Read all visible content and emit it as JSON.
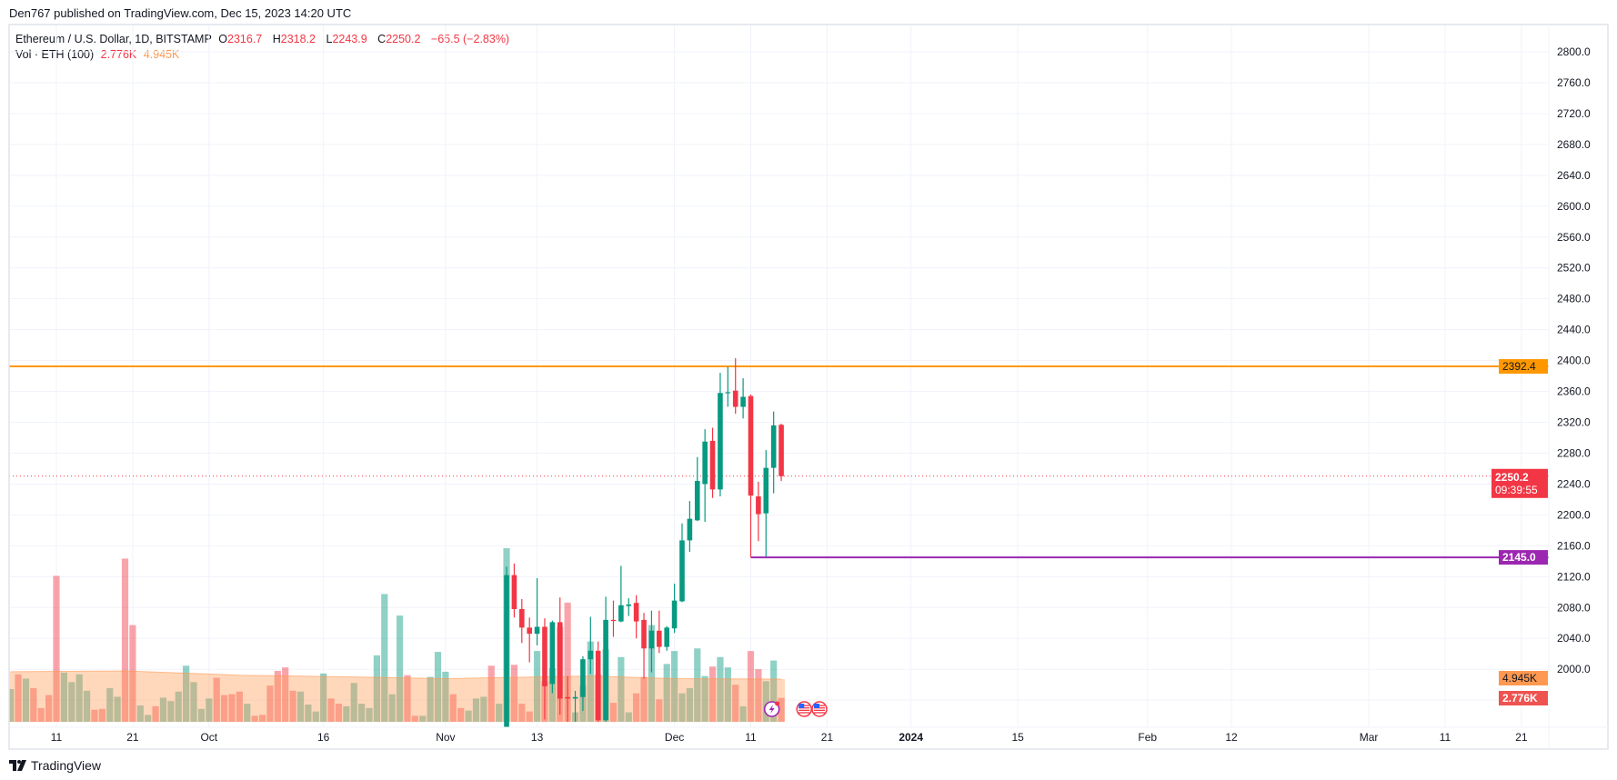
{
  "header": {
    "published": "Den767 published on TradingView.com, Dec 15, 2023 14:20 UTC"
  },
  "legend": {
    "symbol": "Ethereum / U.S. Dollar, 1D, BITSTAMP",
    "o_label": "O",
    "o": "2316.7",
    "h_label": "H",
    "h": "2318.2",
    "l_label": "L",
    "l": "2243.9",
    "c_label": "C",
    "c": "2250.2",
    "change": "−65.5 (−2.83%)",
    "vol_label": "Vol · ETH (100)",
    "vol_value": "2.776K",
    "vol_ma_value": "4.945K"
  },
  "footer": {
    "brand": "TradingView"
  },
  "colors": {
    "up": "#089981",
    "down": "#f23645",
    "resistance": "#ff9800",
    "support": "#9c27b0",
    "last_price": "#f23645",
    "vol_ma": "#ff9850"
  },
  "chart_data": {
    "type": "candlestick",
    "title": "",
    "ylim": [
      1932,
      2830
    ],
    "grid": true,
    "price_ticks": [
      "2800.0",
      "2760.0",
      "2720.0",
      "2680.0",
      "2640.0",
      "2600.0",
      "2560.0",
      "2520.0",
      "2480.0",
      "2440.0",
      "2400.0",
      "2360.0",
      "2320.0",
      "2280.0",
      "2240.0",
      "2200.0",
      "2160.0",
      "2120.0",
      "2080.0",
      "2040.0",
      "2000.0"
    ],
    "time_ticks": [
      {
        "date": "2023-09-11",
        "label": "11"
      },
      {
        "date": "2023-09-21",
        "label": "21"
      },
      {
        "date": "2023-10-01",
        "label": "Oct"
      },
      {
        "date": "2023-10-16",
        "label": "16"
      },
      {
        "date": "2023-11-01",
        "label": "Nov"
      },
      {
        "date": "2023-11-13",
        "label": "13"
      },
      {
        "date": "2023-12-01",
        "label": "Dec"
      },
      {
        "date": "2023-12-11",
        "label": "11"
      },
      {
        "date": "2023-12-21",
        "label": "21"
      },
      {
        "date": "2024-01-01",
        "label": "2024"
      },
      {
        "date": "2024-01-15",
        "label": "15"
      },
      {
        "date": "2024-02-01",
        "label": "Feb"
      },
      {
        "date": "2024-02-12",
        "label": "12"
      },
      {
        "date": "2024-03-01",
        "label": "Mar"
      },
      {
        "date": "2024-03-11",
        "label": "11"
      },
      {
        "date": "2024-03-21",
        "label": "21"
      }
    ],
    "candles": [
      {
        "date": "2023-11-09",
        "o": 1885,
        "h": 2133,
        "l": 1875,
        "c": 2122
      },
      {
        "date": "2023-11-10",
        "o": 2122,
        "h": 2137,
        "l": 2067,
        "c": 2078
      },
      {
        "date": "2023-11-11",
        "o": 2078,
        "h": 2091,
        "l": 2034,
        "c": 2054
      },
      {
        "date": "2023-11-12",
        "o": 2054,
        "h": 2067,
        "l": 2009,
        "c": 2046
      },
      {
        "date": "2023-11-13",
        "o": 2046,
        "h": 2118,
        "l": 2031,
        "c": 2055
      },
      {
        "date": "2023-11-14",
        "o": 2055,
        "h": 2066,
        "l": 1935,
        "c": 1978
      },
      {
        "date": "2023-11-15",
        "o": 1981,
        "h": 2063,
        "l": 1969,
        "c": 2061
      },
      {
        "date": "2023-11-16",
        "o": 2061,
        "h": 2093,
        "l": 1941,
        "c": 1962
      },
      {
        "date": "2023-11-17",
        "o": 1964,
        "h": 1991,
        "l": 1932,
        "c": 1962
      },
      {
        "date": "2023-11-18",
        "o": 1962,
        "h": 1972,
        "l": 1932,
        "c": 1964
      },
      {
        "date": "2023-11-19",
        "o": 1964,
        "h": 2017,
        "l": 1946,
        "c": 2013
      },
      {
        "date": "2023-11-20",
        "o": 2013,
        "h": 2068,
        "l": 1994,
        "c": 2024
      },
      {
        "date": "2023-11-21",
        "o": 2024,
        "h": 2036,
        "l": 1932,
        "c": 1934
      },
      {
        "date": "2023-11-22",
        "o": 1934,
        "h": 2094,
        "l": 1932,
        "c": 2064
      },
      {
        "date": "2023-11-23",
        "o": 2064,
        "h": 2089,
        "l": 2042,
        "c": 2063
      },
      {
        "date": "2023-11-24",
        "o": 2062,
        "h": 2134,
        "l": 2061,
        "c": 2083
      },
      {
        "date": "2023-11-25",
        "o": 2082,
        "h": 2092,
        "l": 2069,
        "c": 2084
      },
      {
        "date": "2023-11-26",
        "o": 2086,
        "h": 2096,
        "l": 2040,
        "c": 2062
      },
      {
        "date": "2023-11-27",
        "o": 2064,
        "h": 2073,
        "l": 1988,
        "c": 2027
      },
      {
        "date": "2023-11-28",
        "o": 2027,
        "h": 2076,
        "l": 1996,
        "c": 2050
      },
      {
        "date": "2023-11-29",
        "o": 2050,
        "h": 2076,
        "l": 2021,
        "c": 2029
      },
      {
        "date": "2023-11-30",
        "o": 2029,
        "h": 2056,
        "l": 2024,
        "c": 2054
      },
      {
        "date": "2023-12-01",
        "o": 2053,
        "h": 2111,
        "l": 2047,
        "c": 2089
      },
      {
        "date": "2023-12-02",
        "o": 2088,
        "h": 2189,
        "l": 2087,
        "c": 2167
      },
      {
        "date": "2023-12-03",
        "o": 2167,
        "h": 2218,
        "l": 2152,
        "c": 2195
      },
      {
        "date": "2023-12-04",
        "o": 2193,
        "h": 2275,
        "l": 2192,
        "c": 2244
      },
      {
        "date": "2023-12-05",
        "o": 2240,
        "h": 2311,
        "l": 2191,
        "c": 2295
      },
      {
        "date": "2023-12-06",
        "o": 2296,
        "h": 2313,
        "l": 2222,
        "c": 2233
      },
      {
        "date": "2023-12-07",
        "o": 2233,
        "h": 2384,
        "l": 2224,
        "c": 2358
      },
      {
        "date": "2023-12-08",
        "o": 2358,
        "h": 2392,
        "l": 2340,
        "c": 2359
      },
      {
        "date": "2023-12-09",
        "o": 2361,
        "h": 2403,
        "l": 2331,
        "c": 2340
      },
      {
        "date": "2023-12-10",
        "o": 2340,
        "h": 2377,
        "l": 2325,
        "c": 2353
      },
      {
        "date": "2023-12-11",
        "o": 2354,
        "h": 2356,
        "l": 2145,
        "c": 2225
      },
      {
        "date": "2023-12-12",
        "o": 2224,
        "h": 2243,
        "l": 2166,
        "c": 2201
      },
      {
        "date": "2023-12-13",
        "o": 2202,
        "h": 2284,
        "l": 2146,
        "c": 2261
      },
      {
        "date": "2023-12-14",
        "o": 2261,
        "h": 2334,
        "l": 2228,
        "c": 2316
      },
      {
        "date": "2023-12-15",
        "o": 2316.7,
        "h": 2318.2,
        "l": 2243.9,
        "c": 2250.2
      }
    ],
    "volume_unit": "K",
    "volume": [
      [
        "2023-09-05",
        3.8,
        1
      ],
      [
        "2023-09-06",
        5.5,
        0
      ],
      [
        "2023-09-07",
        5.0,
        1
      ],
      [
        "2023-09-08",
        3.9,
        0
      ],
      [
        "2023-09-09",
        1.6,
        0
      ],
      [
        "2023-09-10",
        3.1,
        0
      ],
      [
        "2023-09-11",
        16.9,
        0
      ],
      [
        "2023-09-12",
        5.7,
        1
      ],
      [
        "2023-09-13",
        4.6,
        1
      ],
      [
        "2023-09-14",
        5.5,
        1
      ],
      [
        "2023-09-15",
        3.6,
        1
      ],
      [
        "2023-09-16",
        1.4,
        0
      ],
      [
        "2023-09-17",
        1.5,
        0
      ],
      [
        "2023-09-18",
        3.9,
        1
      ],
      [
        "2023-09-19",
        2.9,
        1
      ],
      [
        "2023-09-20",
        18.9,
        0
      ],
      [
        "2023-09-21",
        11.2,
        0
      ],
      [
        "2023-09-22",
        1.9,
        1
      ],
      [
        "2023-09-23",
        0.8,
        1
      ],
      [
        "2023-09-24",
        1.8,
        0
      ],
      [
        "2023-09-25",
        2.8,
        1
      ],
      [
        "2023-09-26",
        2.4,
        1
      ],
      [
        "2023-09-27",
        3.5,
        1
      ],
      [
        "2023-09-28",
        6.5,
        1
      ],
      [
        "2023-09-29",
        4.6,
        1
      ],
      [
        "2023-09-30",
        1.5,
        1
      ],
      [
        "2023-10-01",
        2.7,
        1
      ],
      [
        "2023-10-02",
        5.1,
        0
      ],
      [
        "2023-10-03",
        3.1,
        0
      ],
      [
        "2023-10-04",
        3.2,
        0
      ],
      [
        "2023-10-05",
        3.5,
        0
      ],
      [
        "2023-10-06",
        2.1,
        1
      ],
      [
        "2023-10-07",
        0.7,
        0
      ],
      [
        "2023-10-08",
        0.8,
        0
      ],
      [
        "2023-10-09",
        4.2,
        0
      ],
      [
        "2023-10-10",
        5.9,
        0
      ],
      [
        "2023-10-11",
        6.3,
        0
      ],
      [
        "2023-10-12",
        3.6,
        0
      ],
      [
        "2023-10-13",
        3.5,
        1
      ],
      [
        "2023-10-14",
        2.0,
        1
      ],
      [
        "2023-10-15",
        1.2,
        1
      ],
      [
        "2023-10-16",
        5.6,
        1
      ],
      [
        "2023-10-17",
        2.7,
        0
      ],
      [
        "2023-10-18",
        2.1,
        0
      ],
      [
        "2023-10-19",
        1.8,
        1
      ],
      [
        "2023-10-20",
        4.5,
        1
      ],
      [
        "2023-10-21",
        2.1,
        1
      ],
      [
        "2023-10-22",
        1.6,
        1
      ],
      [
        "2023-10-23",
        7.7,
        1
      ],
      [
        "2023-10-24",
        14.8,
        1
      ],
      [
        "2023-10-25",
        3.2,
        1
      ],
      [
        "2023-10-26",
        12.3,
        1
      ],
      [
        "2023-10-27",
        5.4,
        0
      ],
      [
        "2023-10-28",
        0.7,
        0
      ],
      [
        "2023-10-29",
        0.7,
        1
      ],
      [
        "2023-10-30",
        5.2,
        1
      ],
      [
        "2023-10-31",
        8.1,
        1
      ],
      [
        "2023-11-01",
        5.8,
        1
      ],
      [
        "2023-11-02",
        3.2,
        0
      ],
      [
        "2023-11-03",
        1.6,
        0
      ],
      [
        "2023-11-04",
        1.3,
        1
      ],
      [
        "2023-11-05",
        2.7,
        1
      ],
      [
        "2023-11-06",
        2.9,
        1
      ],
      [
        "2023-11-07",
        6.5,
        0
      ],
      [
        "2023-11-08",
        2.1,
        1
      ],
      [
        "2023-11-09",
        20.1,
        1
      ],
      [
        "2023-11-10",
        6.6,
        0
      ],
      [
        "2023-11-11",
        2.1,
        0
      ],
      [
        "2023-11-12",
        1.2,
        0
      ],
      [
        "2023-11-13",
        8.2,
        1
      ],
      [
        "2023-11-14",
        4.7,
        0
      ],
      [
        "2023-11-15",
        6.2,
        1
      ],
      [
        "2023-11-16",
        11.0,
        0
      ],
      [
        "2023-11-17",
        13.8,
        0
      ],
      [
        "2023-11-18",
        1.1,
        1
      ],
      [
        "2023-11-19",
        4.2,
        1
      ],
      [
        "2023-11-20",
        9.3,
        1
      ],
      [
        "2023-11-21",
        5.5,
        0
      ],
      [
        "2023-11-22",
        8.4,
        1
      ],
      [
        "2023-11-23",
        2.2,
        0
      ],
      [
        "2023-11-24",
        7.5,
        1
      ],
      [
        "2023-11-25",
        1.1,
        1
      ],
      [
        "2023-11-26",
        3.3,
        0
      ],
      [
        "2023-11-27",
        5.2,
        0
      ],
      [
        "2023-11-28",
        11.2,
        1
      ],
      [
        "2023-11-29",
        2.6,
        0
      ],
      [
        "2023-11-30",
        6.7,
        1
      ],
      [
        "2023-12-01",
        8.2,
        1
      ],
      [
        "2023-12-02",
        3.3,
        1
      ],
      [
        "2023-12-03",
        3.9,
        1
      ],
      [
        "2023-12-04",
        8.5,
        1
      ],
      [
        "2023-12-05",
        5.3,
        1
      ],
      [
        "2023-12-06",
        6.4,
        0
      ],
      [
        "2023-12-07",
        7.5,
        1
      ],
      [
        "2023-12-08",
        6.3,
        1
      ],
      [
        "2023-12-09",
        4.3,
        0
      ],
      [
        "2023-12-10",
        1.8,
        1
      ],
      [
        "2023-12-11",
        8.2,
        0
      ],
      [
        "2023-12-12",
        6.1,
        0
      ],
      [
        "2023-12-13",
        4.7,
        1
      ],
      [
        "2023-12-14",
        7.1,
        1
      ],
      [
        "2023-12-15",
        2.776,
        0
      ]
    ],
    "volume_ma": [
      [
        "2023-09-05",
        5.8
      ],
      [
        "2023-09-20",
        5.9
      ],
      [
        "2023-10-05",
        5.4
      ],
      [
        "2023-10-20",
        5.2
      ],
      [
        "2023-11-01",
        5.0
      ],
      [
        "2023-11-20",
        5.3
      ],
      [
        "2023-12-01",
        5.0
      ],
      [
        "2023-12-15",
        4.945
      ]
    ],
    "horizontal_lines": [
      {
        "name": "resistance",
        "price": 2392.4,
        "label": "2392.4",
        "from": "start"
      },
      {
        "name": "support",
        "price": 2145.0,
        "label": "2145.0",
        "from": "2023-12-11"
      }
    ],
    "last_price": {
      "price": 2250.2,
      "label": "2250.2",
      "countdown": "09:39:55"
    },
    "volume_labels": {
      "ma": "4.945K",
      "last": "2.776K"
    },
    "events": [
      {
        "date": "2023-12-14",
        "type": "lightning-event-icon"
      },
      {
        "date": "2023-12-18",
        "type": "us-flag-icon"
      },
      {
        "date": "2023-12-20",
        "type": "us-flag-icon"
      }
    ]
  }
}
